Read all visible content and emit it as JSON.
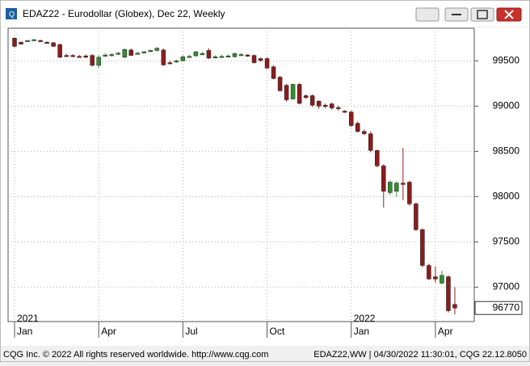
{
  "window": {
    "title": "EDAZ22 - Eurodollar (Globex), Dec 22, Weekly"
  },
  "chart_data": {
    "type": "candlestick",
    "up_color": "#2f8f2f",
    "down_color": "#8b1c1c",
    "ylim": [
      96620,
      99860
    ],
    "yticks": [
      97000,
      97500,
      98000,
      98500,
      99000,
      99500
    ],
    "xlim": [
      -1,
      71
    ],
    "xticks": [
      {
        "value": 0,
        "label": "Jan"
      },
      {
        "value": 13,
        "label": "Apr"
      },
      {
        "value": 26,
        "label": "Jul"
      },
      {
        "value": 39,
        "label": "Oct"
      },
      {
        "value": 52,
        "label": "Jan"
      },
      {
        "value": 65,
        "label": "Apr"
      }
    ],
    "year_labels": [
      {
        "value": 0,
        "label": "2021"
      },
      {
        "value": 52,
        "label": "2022"
      }
    ],
    "grid": true,
    "ohlc": [
      [
        99750,
        99760,
        99650,
        99660
      ],
      [
        99705,
        99715,
        99680,
        99685
      ],
      [
        99720,
        99730,
        99715,
        99725
      ],
      [
        99730,
        99740,
        99725,
        99735
      ],
      [
        99725,
        99735,
        99715,
        99720
      ],
      [
        99705,
        99715,
        99695,
        99700
      ],
      [
        99700,
        99710,
        99655,
        99660
      ],
      [
        99680,
        99690,
        99530,
        99540
      ],
      [
        99560,
        99580,
        99545,
        99555
      ],
      [
        99560,
        99575,
        99540,
        99555
      ],
      [
        99550,
        99565,
        99535,
        99545
      ],
      [
        99555,
        99570,
        99530,
        99540
      ],
      [
        99560,
        99575,
        99440,
        99450
      ],
      [
        99450,
        99560,
        99420,
        99540
      ],
      [
        99560,
        99580,
        99545,
        99565
      ],
      [
        99565,
        99585,
        99550,
        99570
      ],
      [
        99580,
        99600,
        99565,
        99585
      ],
      [
        99540,
        99640,
        99530,
        99625
      ],
      [
        99620,
        99635,
        99555,
        99560
      ],
      [
        99580,
        99600,
        99570,
        99585
      ],
      [
        99595,
        99610,
        99585,
        99600
      ],
      [
        99610,
        99625,
        99600,
        99615
      ],
      [
        99615,
        99650,
        99605,
        99640
      ],
      [
        99620,
        99635,
        99445,
        99455
      ],
      [
        99480,
        99500,
        99465,
        99475
      ],
      [
        99490,
        99515,
        99480,
        99500
      ],
      [
        99500,
        99560,
        99495,
        99545
      ],
      [
        99545,
        99565,
        99535,
        99550
      ],
      [
        99555,
        99610,
        99550,
        99600
      ],
      [
        99580,
        99600,
        99565,
        99580
      ],
      [
        99615,
        99640,
        99520,
        99530
      ],
      [
        99545,
        99560,
        99535,
        99545
      ],
      [
        99545,
        99565,
        99540,
        99550
      ],
      [
        99550,
        99570,
        99540,
        99555
      ],
      [
        99545,
        99590,
        99540,
        99580
      ],
      [
        99570,
        99585,
        99560,
        99570
      ],
      [
        99565,
        99575,
        99545,
        99560
      ],
      [
        99560,
        99570,
        99470,
        99480
      ],
      [
        99525,
        99535,
        99490,
        99505
      ],
      [
        99525,
        99540,
        99410,
        99420
      ],
      [
        99435,
        99450,
        99295,
        99305
      ],
      [
        99320,
        99335,
        99160,
        99170
      ],
      [
        99230,
        99245,
        99050,
        99070
      ],
      [
        99080,
        99250,
        99070,
        99240
      ],
      [
        99240,
        99255,
        99020,
        99030
      ],
      [
        99115,
        99130,
        99080,
        99095
      ],
      [
        99115,
        99130,
        98990,
        99010
      ],
      [
        99055,
        99065,
        98970,
        99000
      ],
      [
        99010,
        99030,
        98975,
        99000
      ],
      [
        99025,
        99040,
        98960,
        98980
      ],
      [
        98985,
        99005,
        98950,
        98975
      ],
      [
        98945,
        98955,
        98925,
        98935
      ],
      [
        98935,
        98950,
        98770,
        98785
      ],
      [
        98810,
        98830,
        98710,
        98720
      ],
      [
        98720,
        98740,
        98680,
        98695
      ],
      [
        98695,
        98720,
        98490,
        98510
      ],
      [
        98510,
        98520,
        98325,
        98340
      ],
      [
        98340,
        98360,
        97880,
        98060
      ],
      [
        98045,
        98180,
        98020,
        98160
      ],
      [
        98060,
        98170,
        98000,
        98150
      ],
      [
        98150,
        98540,
        97960,
        98135
      ],
      [
        98160,
        98175,
        97900,
        97920
      ],
      [
        97920,
        97935,
        97620,
        97635
      ],
      [
        97635,
        97650,
        97220,
        97240
      ],
      [
        97240,
        97260,
        97080,
        97090
      ],
      [
        97115,
        97230,
        97050,
        97090
      ],
      [
        97045,
        97180,
        97030,
        97130
      ],
      [
        97115,
        97130,
        96720,
        96740
      ],
      [
        96810,
        97000,
        96700,
        96770
      ]
    ]
  },
  "footer": {
    "left": "CQG Inc. © 2022 All rights reserved worldwide. http://www.cqg.com",
    "right": "EDAZ22,WW | 04/30/2022 11:30:01, CQG 22.12.8050"
  }
}
